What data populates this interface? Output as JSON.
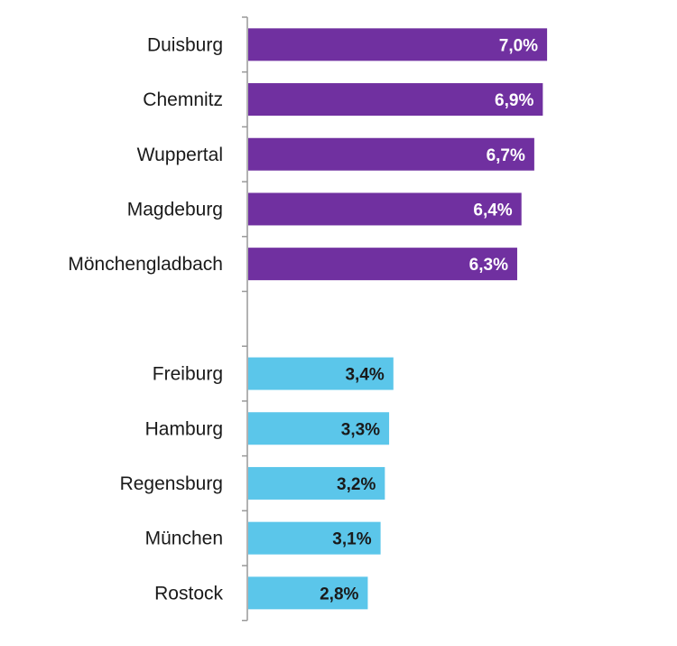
{
  "chart_data": {
    "type": "bar",
    "orientation": "horizontal",
    "title": "",
    "xlabel": "",
    "ylabel": "",
    "grid": false,
    "legend": "none",
    "xlim": [
      0,
      7.4
    ],
    "categories": [
      "Duisburg",
      "Chemnitz",
      "Wuppertal",
      "Magdeburg",
      "Mönchengladbach",
      "",
      "Freiburg",
      "Hamburg",
      "Regensburg",
      "München",
      "Rostock"
    ],
    "values": [
      7.0,
      6.9,
      6.7,
      6.4,
      6.3,
      null,
      3.4,
      3.3,
      3.2,
      3.1,
      2.8
    ],
    "value_labels": [
      "7,0%",
      "6,9%",
      "6,7%",
      "6,4%",
      "6,3%",
      "",
      "3,4%",
      "3,3%",
      "3,2%",
      "3,1%",
      "2,8%"
    ],
    "bar_colors": [
      "#7030a0",
      "#7030a0",
      "#7030a0",
      "#7030a0",
      "#7030a0",
      "",
      "#5bc6ea",
      "#5bc6ea",
      "#5bc6ea",
      "#5bc6ea",
      "#5bc6ea"
    ],
    "label_colors": [
      "#ffffff",
      "#ffffff",
      "#ffffff",
      "#ffffff",
      "#ffffff",
      "",
      "#1a1a1a",
      "#1a1a1a",
      "#1a1a1a",
      "#1a1a1a",
      "#1a1a1a"
    ],
    "axis_color": "#999999"
  }
}
